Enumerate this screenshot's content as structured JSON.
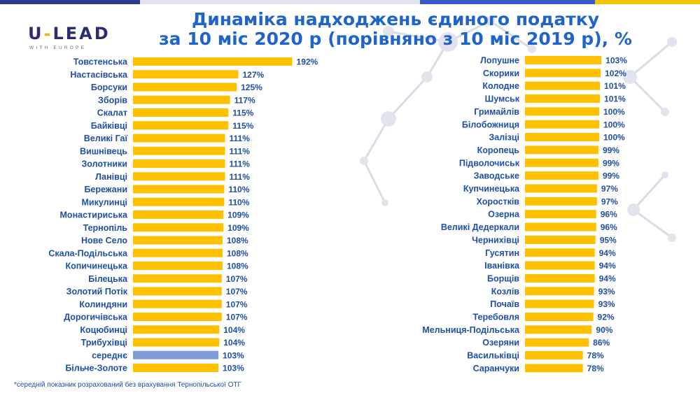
{
  "colors": {
    "bar": "#ffc000",
    "highlight": "#7f9bd8",
    "title": "#1f64c8",
    "label": "#1f4fa5"
  },
  "logo": {
    "main_left": "U",
    "main_dash": "-",
    "main_right": "LEAD",
    "sub": "WITH EUROPE"
  },
  "title": {
    "line1": "Динаміка надходжень єдиного податку",
    "line2": "за 10 міс 2020 р (порівняно з 10 міс 2019 р), %"
  },
  "footnote": "*середній показник розрахований без врахування Тернопільської ОТГ",
  "chart_data": [
    {
      "type": "bar",
      "orientation": "horizontal",
      "unit": "%",
      "categories": [
        "Товстенська",
        "Настасівська",
        "Борсуки",
        "Зборів",
        "Скалат",
        "Байківці",
        "Великі Гаї",
        "Вишнівець",
        "Золотники",
        "Ланівці",
        "Бережани",
        "Микулинці",
        "Монастириська",
        "Тернопіль",
        "Нове Село",
        "Скала-Подільська",
        "Копичинецька",
        "Білецька",
        "Золотий Потік",
        "Колиндяни",
        "Дорогичівська",
        "Коцюбинці",
        "Трибухівці",
        "середнє",
        "Більче-Золоте"
      ],
      "values": [
        192,
        127,
        125,
        117,
        115,
        115,
        111,
        111,
        111,
        111,
        110,
        110,
        109,
        109,
        108,
        108,
        108,
        107,
        107,
        107,
        107,
        104,
        104,
        103,
        103
      ],
      "value_labels": [
        "192%",
        "127%",
        "125%",
        "117%",
        "115%",
        "115%",
        "111%",
        "111%",
        "111%",
        "111%",
        "110%",
        "110%",
        "109%",
        "109%",
        "108%",
        "108%",
        "108%",
        "107%",
        "107%",
        "107%",
        "107%",
        "104%",
        "104%",
        "103%",
        "103%"
      ],
      "highlight": "середнє"
    },
    {
      "type": "bar",
      "orientation": "horizontal",
      "unit": "%",
      "categories": [
        "Лопушне",
        "Скорики",
        "Колодне",
        "Шумськ",
        "Гримайлів",
        "Білобожниця",
        "Залізці",
        "Коропець",
        "Підволочиськ",
        "Заводське",
        "Купчинецька",
        "Хоростків",
        "Озерна",
        "Великі Дедеркали",
        "Чернихівці",
        "Гусятин",
        "Іванівка",
        "Борщів",
        "Козлів",
        "Почаїв",
        "Теребовля",
        "Мельниця-Подільська",
        "Озеряни",
        "Васильківці",
        "Саранчуки"
      ],
      "values": [
        103,
        102,
        101,
        101,
        100,
        100,
        100,
        99,
        99,
        99,
        97,
        97,
        96,
        96,
        95,
        94,
        94,
        94,
        93,
        93,
        92,
        90,
        86,
        78,
        78
      ],
      "value_labels": [
        "103%",
        "102%",
        "101%",
        "101%",
        "100%",
        "100%",
        "100%",
        "99%",
        "99%",
        "99%",
        "97%",
        "97%",
        "96%",
        "96%",
        "95%",
        "94%",
        "94%",
        "94%",
        "93%",
        "93%",
        "92%",
        "90%",
        "86%",
        "78%",
        "78%"
      ]
    }
  ]
}
